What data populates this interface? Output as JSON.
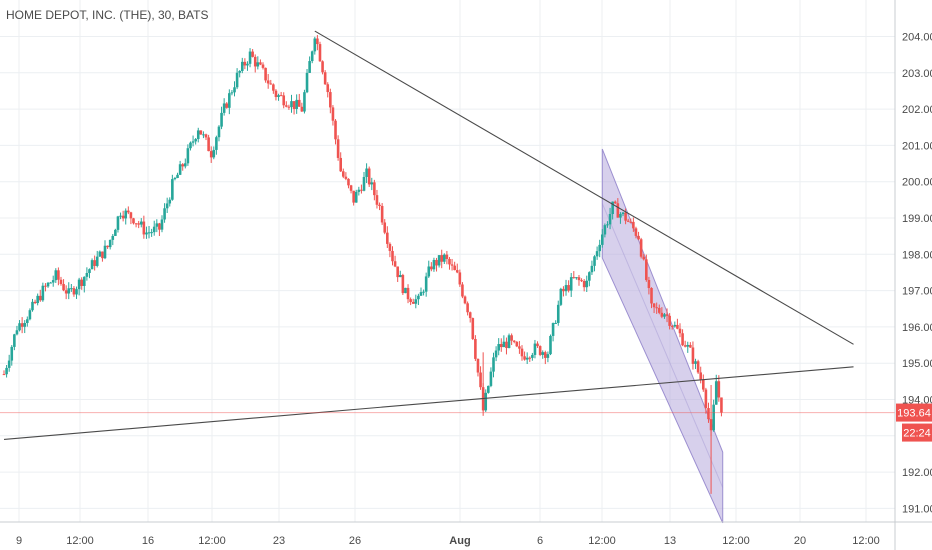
{
  "chart_data": {
    "type": "candlestick",
    "title": "HOME DEPOT, INC. (THE), 30, BATS",
    "y_axis": {
      "ticks": [
        "204.00",
        "203.00",
        "202.00",
        "201.00",
        "200.00",
        "199.00",
        "198.00",
        "197.00",
        "196.00",
        "195.00",
        "194.00",
        "193.00",
        "192.00",
        "191.00"
      ],
      "ylim": [
        190.6,
        204.3
      ]
    },
    "x_axis": {
      "ticks": [
        "9",
        "12:00",
        "16",
        "12:00",
        "23",
        "26",
        "Aug",
        "6",
        "12:00",
        "13",
        "12:00",
        "20",
        "12:00"
      ]
    },
    "last_price": {
      "value": 193.64,
      "label": "193.64",
      "color": "#ef5350"
    },
    "countdown": {
      "label": "22:24",
      "color": "#ef5350"
    },
    "trend_lines": [
      {
        "name": "descending resistance",
        "from": [
          24,
          204.15
        ],
        "to": [
          65.6,
          195.52
        ]
      },
      {
        "name": "ascending support",
        "from": [
          0,
          192.9
        ],
        "to": [
          65.6,
          194.9
        ]
      }
    ],
    "channel": {
      "upper": [
        [
          46.2,
          200.9
        ],
        [
          55.5,
          192.55
        ]
      ],
      "lower": [
        [
          46.2,
          197.9
        ],
        [
          55.5,
          190.6
        ]
      ],
      "fill": "#b7a9dc"
    },
    "series": [
      {
        "trend_points": [
          [
            0,
            194.7
          ],
          [
            1,
            196.0
          ],
          [
            2,
            196.4
          ],
          [
            3,
            197.0
          ],
          [
            4,
            197.4
          ],
          [
            5,
            196.9
          ],
          [
            6,
            197.3
          ],
          [
            7,
            197.8
          ],
          [
            8,
            198.2
          ],
          [
            9,
            199.2
          ],
          [
            10,
            199.0
          ],
          [
            11,
            198.6
          ],
          [
            12,
            198.7
          ],
          [
            13,
            199.9
          ],
          [
            14,
            200.6
          ],
          [
            15,
            201.5
          ],
          [
            16,
            200.8
          ],
          [
            17,
            202.0
          ],
          [
            18,
            202.9
          ],
          [
            19,
            203.5
          ],
          [
            20,
            203.0
          ],
          [
            21,
            202.4
          ],
          [
            22,
            202.2
          ],
          [
            23,
            202.0
          ],
          [
            24,
            204.1
          ],
          [
            25,
            202.5
          ],
          [
            26,
            200.3
          ],
          [
            27,
            199.5
          ],
          [
            28,
            200.2
          ],
          [
            29,
            199.3
          ],
          [
            30,
            197.9
          ],
          [
            31,
            196.9
          ],
          [
            32,
            196.7
          ],
          [
            33,
            197.7
          ],
          [
            34,
            197.9
          ],
          [
            35,
            197.4
          ],
          [
            36,
            196.3
          ],
          [
            37,
            193.7
          ],
          [
            38,
            195.4
          ],
          [
            39,
            195.6
          ],
          [
            40,
            195.2
          ],
          [
            41,
            195.4
          ],
          [
            42,
            195.3
          ],
          [
            43,
            196.9
          ],
          [
            44,
            197.3
          ],
          [
            45,
            197.2
          ],
          [
            46,
            198.4
          ],
          [
            47,
            199.3
          ],
          [
            48,
            199.0
          ],
          [
            49,
            198.5
          ],
          [
            50,
            196.5
          ],
          [
            51,
            196.4
          ],
          [
            52,
            195.9
          ],
          [
            53,
            195.3
          ],
          [
            54,
            194.4
          ],
          [
            54.6,
            193.0
          ],
          [
            55,
            194.5
          ],
          [
            55.4,
            193.64
          ]
        ]
      }
    ],
    "colors": {
      "up": "#26a69a",
      "down": "#ef5350",
      "trend_line": "#4a4a4a",
      "grid": "#eceff2"
    }
  }
}
